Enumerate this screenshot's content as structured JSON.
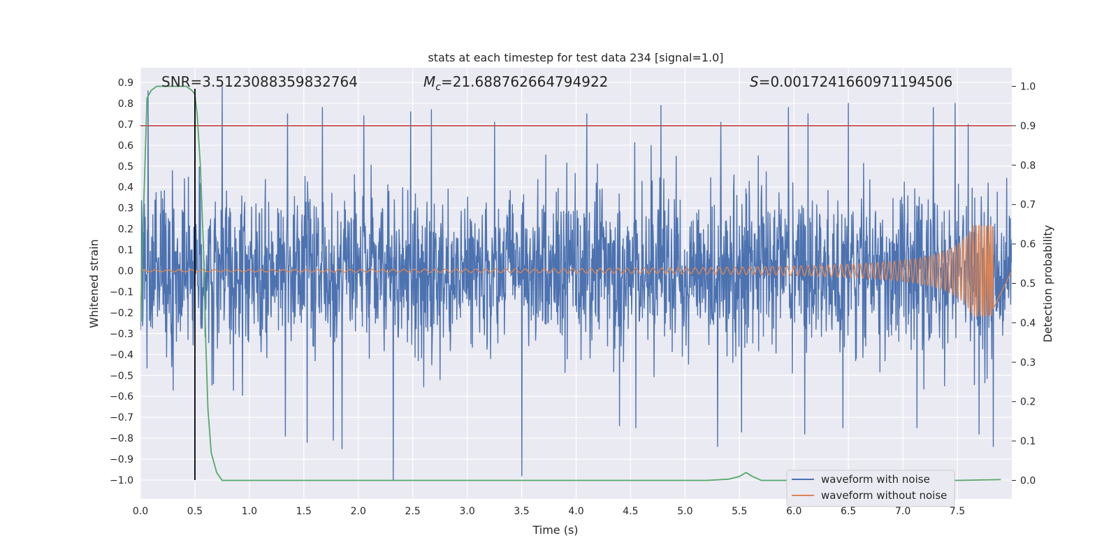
{
  "chart_data": {
    "type": "line",
    "title": "stats at each timestep for test data 234 [signal=1.0]",
    "xlabel": "Time (s)",
    "ylabel": "Whitened strain",
    "y2label": "Detection probability",
    "xlim": [
      0.0,
      8.0
    ],
    "ylim": [
      -1.09,
      0.97
    ],
    "y2lim": [
      -0.047,
      1.047
    ],
    "x_ticks": [
      "0.0",
      "0.5",
      "1.0",
      "1.5",
      "2.0",
      "2.5",
      "3.0",
      "3.5",
      "4.0",
      "4.5",
      "5.0",
      "5.5",
      "6.0",
      "6.5",
      "7.0",
      "7.5"
    ],
    "y_ticks": [
      "0.9",
      "0.8",
      "0.7",
      "0.6",
      "0.5",
      "0.4",
      "0.3",
      "0.2",
      "0.1",
      "0.0",
      "−0.1",
      "−0.2",
      "−0.3",
      "−0.4",
      "−0.5",
      "−0.6",
      "−0.7",
      "−0.8",
      "−0.9",
      "−1.0"
    ],
    "y2_ticks": [
      "1.0",
      "0.9",
      "0.8",
      "0.7",
      "0.6",
      "0.5",
      "0.4",
      "0.3",
      "0.2",
      "0.1",
      "0.0"
    ],
    "grid": true,
    "legend_position": "lower-right",
    "annotations": {
      "snr": "SNR=3.5123088359832764",
      "mc_symbol": "M",
      "mc_sub": "c",
      "mc_value": "=21.688762664794922",
      "s_symbol": "S",
      "s_value": "=0.0017241660971194506"
    },
    "threshold_line": {
      "axis": "y2",
      "value": 0.9
    },
    "vertical_marker": {
      "x": 0.5,
      "y_from": -1.0,
      "y_to": 0.87
    },
    "series": [
      {
        "name": "waveform with noise",
        "axis": "y",
        "envelope": {
          "x_start": 0.0,
          "x_end": 8.0,
          "typical_upper": 0.45,
          "typical_lower": -0.42
        },
        "spikes": [
          [
            0.07,
            0.86
          ],
          [
            0.5,
            0.85
          ],
          [
            0.75,
            0.88
          ],
          [
            1.67,
            0.78
          ],
          [
            1.35,
            0.75
          ],
          [
            2.05,
            0.74
          ],
          [
            2.48,
            0.76
          ],
          [
            2.67,
            0.77
          ],
          [
            3.25,
            0.71
          ],
          [
            4.1,
            0.75
          ],
          [
            4.78,
            0.79
          ],
          [
            5.33,
            0.71
          ],
          [
            5.95,
            0.78
          ],
          [
            6.13,
            0.75
          ],
          [
            6.5,
            0.8
          ],
          [
            7.28,
            0.78
          ],
          [
            7.48,
            0.8
          ],
          [
            7.6,
            0.7
          ],
          [
            0.3,
            -0.57
          ],
          [
            1.33,
            -0.79
          ],
          [
            1.53,
            -0.82
          ],
          [
            1.77,
            -0.81
          ],
          [
            1.85,
            -0.85
          ],
          [
            2.32,
            -1.0
          ],
          [
            3.5,
            -0.98
          ],
          [
            4.4,
            -0.74
          ],
          [
            4.55,
            -0.75
          ],
          [
            5.3,
            -0.84
          ],
          [
            5.52,
            -0.77
          ],
          [
            6.1,
            -0.78
          ],
          [
            6.45,
            -0.75
          ],
          [
            7.13,
            -0.75
          ],
          [
            7.7,
            -0.78
          ],
          [
            7.83,
            -0.84
          ]
        ]
      },
      {
        "name": "waveform without noise",
        "axis": "y",
        "chirp": {
          "x_start": 0.0,
          "x_end": 7.83,
          "amp_start": 0.005,
          "amp_peak": 0.22,
          "freq_start_hz": 9.0,
          "freq_end_hz": 60.0
        }
      },
      {
        "name": "detection probability",
        "axis": "y2",
        "x": [
          0.0,
          0.03,
          0.06,
          0.1,
          0.15,
          0.25,
          0.35,
          0.42,
          0.47,
          0.5,
          0.52,
          0.55,
          0.58,
          0.6,
          0.62,
          0.65,
          0.7,
          0.75,
          0.8,
          5.2,
          5.4,
          5.5,
          5.56,
          5.62,
          5.7,
          5.8,
          7.5,
          7.9
        ],
        "y": [
          0.4,
          0.7,
          0.97,
          0.99,
          1.0,
          1.0,
          1.0,
          1.0,
          0.99,
          0.98,
          0.93,
          0.8,
          0.58,
          0.35,
          0.18,
          0.07,
          0.02,
          0.0,
          0.0,
          0.0,
          0.003,
          0.01,
          0.02,
          0.01,
          0.0,
          0.0,
          0.0,
          0.002
        ]
      }
    ],
    "colors": {
      "background": "#eaeaf2",
      "grid": "#ffffff",
      "noise": "#4c72b0",
      "clean": "#dd8452",
      "prob": "#55a868",
      "threshold": "#c44e52",
      "marker": "#000000"
    }
  }
}
